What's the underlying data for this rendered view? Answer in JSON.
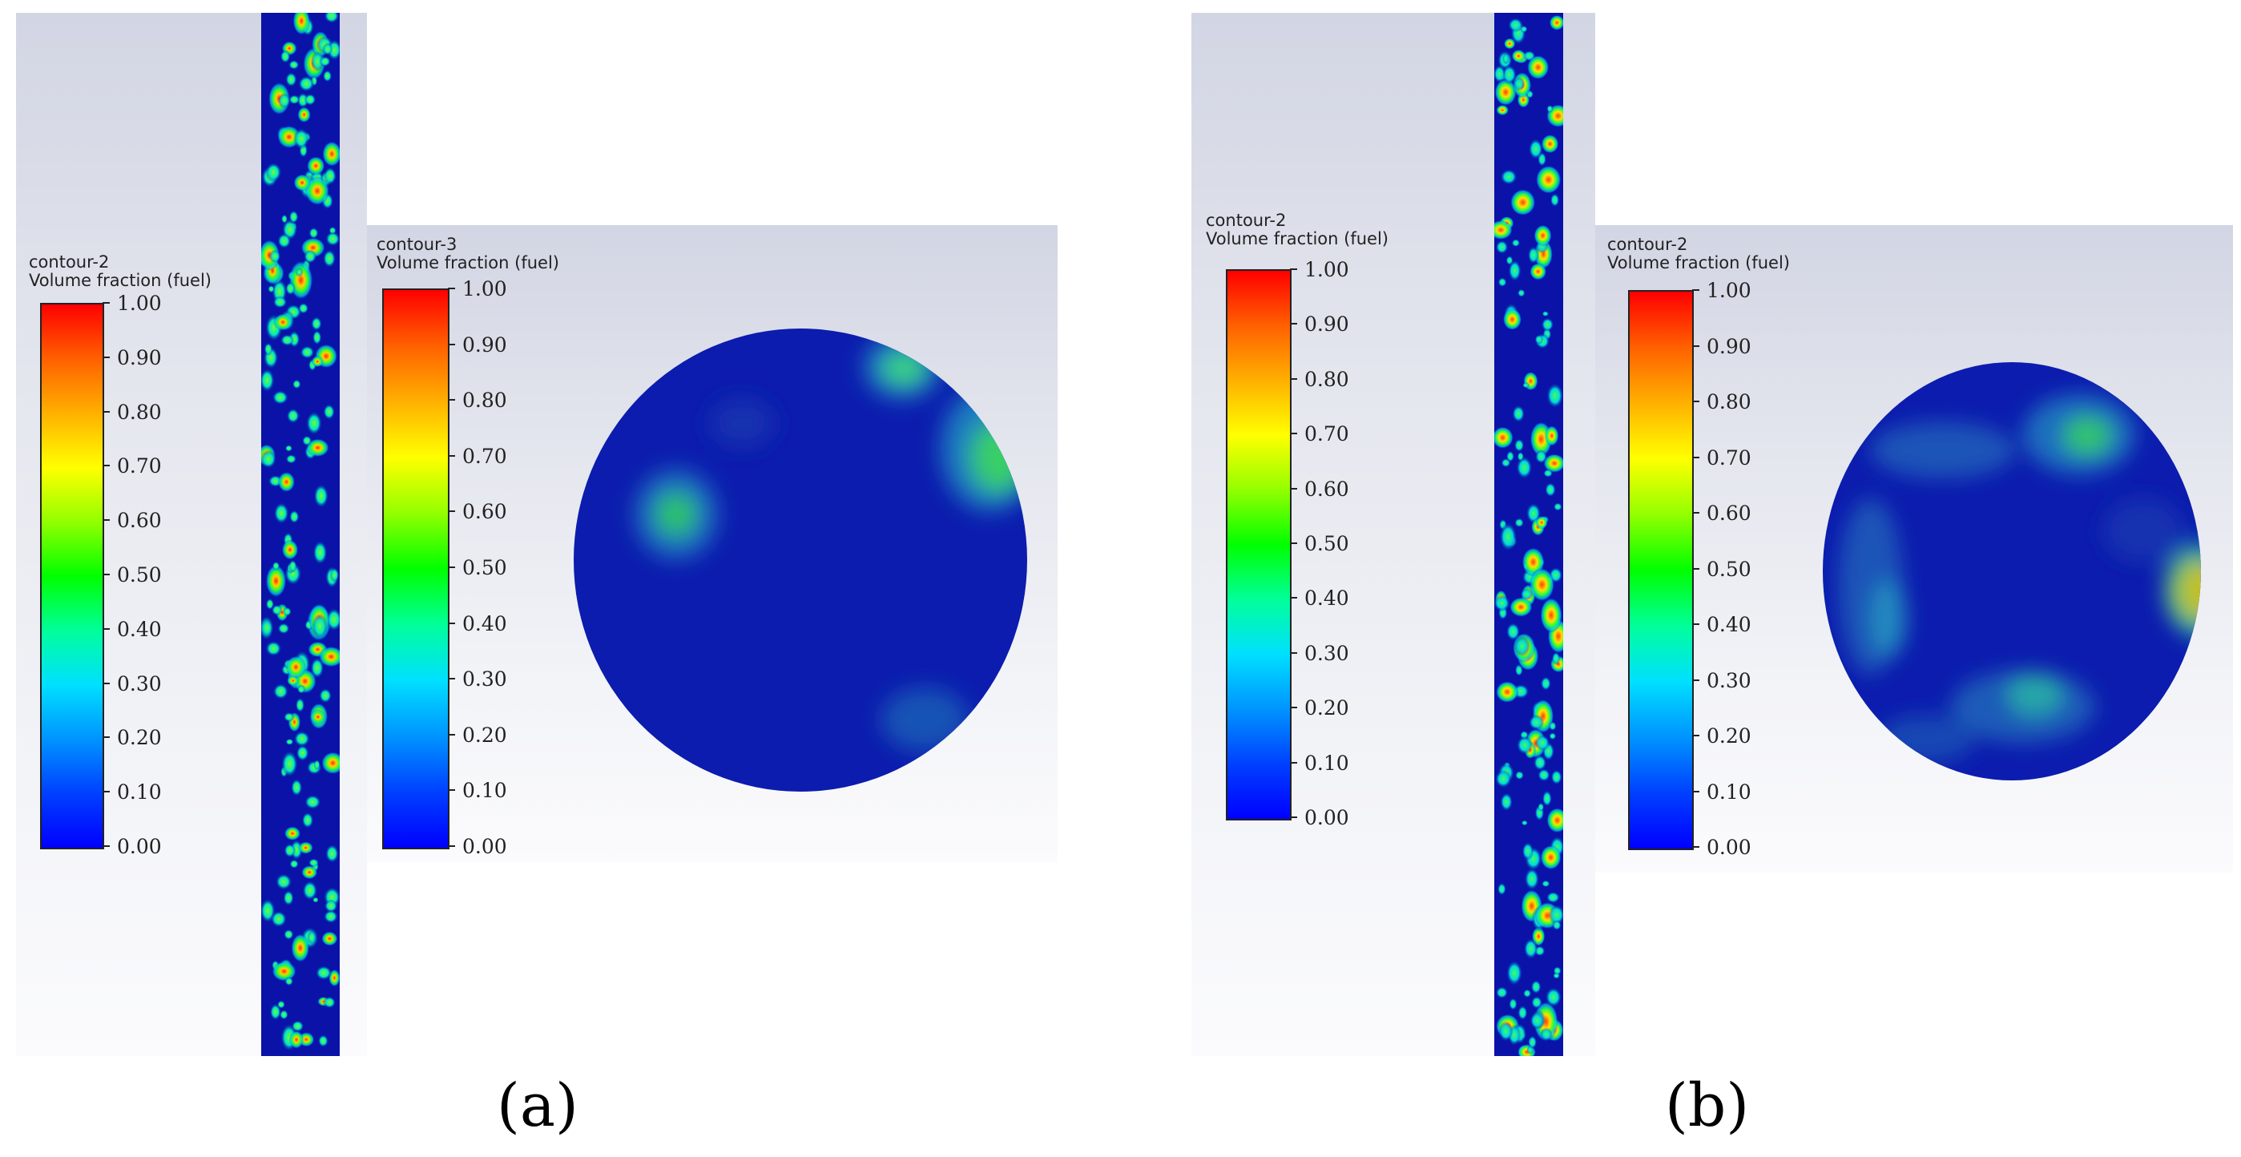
{
  "panels": {
    "a": {
      "caption": "(a)",
      "side_legend": {
        "name": "contour-2",
        "variable": "Volume fraction (fuel)",
        "ticks": [
          "1.00",
          "0.90",
          "0.80",
          "0.70",
          "0.60",
          "0.50",
          "0.40",
          "0.30",
          "0.20",
          "0.10",
          "0.00"
        ]
      },
      "section_legend": {
        "name": "contour-3",
        "variable": "Volume fraction (fuel)",
        "ticks": [
          "1.00",
          "0.90",
          "0.80",
          "0.70",
          "0.60",
          "0.50",
          "0.40",
          "0.30",
          "0.20",
          "0.10",
          "0.00"
        ]
      }
    },
    "b": {
      "caption": "(b)",
      "side_legend": {
        "name": "contour-2",
        "variable": "Volume fraction (fuel)",
        "ticks": [
          "1.00",
          "0.90",
          "0.80",
          "0.70",
          "0.60",
          "0.50",
          "0.40",
          "0.30",
          "0.20",
          "0.10",
          "0.00"
        ]
      },
      "section_legend": {
        "name": "contour-2",
        "variable": "Volume fraction (fuel)",
        "ticks": [
          "1.00",
          "0.90",
          "0.80",
          "0.70",
          "0.60",
          "0.50",
          "0.40",
          "0.30",
          "0.20",
          "0.10",
          "0.00"
        ]
      }
    }
  },
  "colormap": [
    "#0000ff",
    "#00e0ff",
    "#00ff00",
    "#ffff00",
    "#ff0000"
  ]
}
